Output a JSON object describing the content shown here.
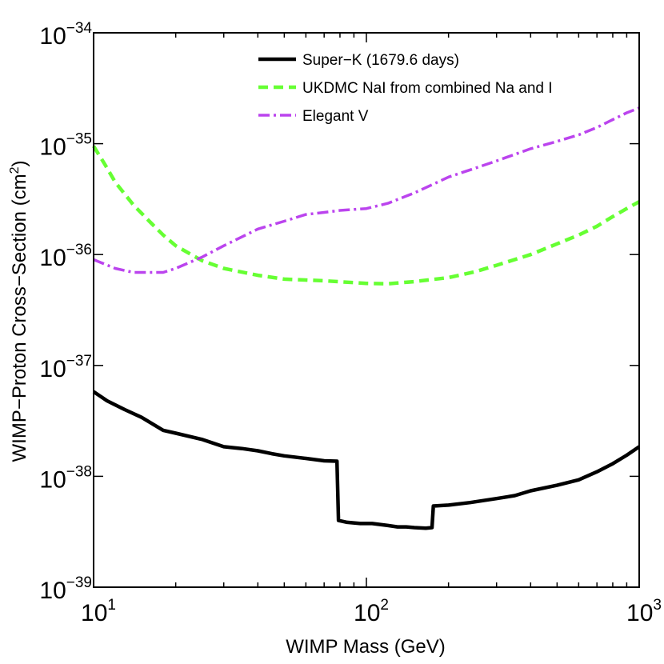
{
  "chart_data": {
    "type": "line",
    "title": "",
    "xlabel": "WIMP Mass (GeV)",
    "ylabel_main": "WIMP−Proton Cross−Section (cm",
    "ylabel_sup": "2",
    "ylabel_close": ")",
    "xscale": "log",
    "yscale": "log",
    "xlim": [
      10,
      1000
    ],
    "ylim": [
      1e-39,
      1e-34
    ],
    "x_ticks": [
      {
        "value": 10,
        "base": "10",
        "exp": "1"
      },
      {
        "value": 100,
        "base": "10",
        "exp": "2"
      },
      {
        "value": 1000,
        "base": "10",
        "exp": "3"
      }
    ],
    "y_ticks": [
      {
        "value": 1e-34,
        "base": "10",
        "exp": "−34"
      },
      {
        "value": 1e-35,
        "base": "10",
        "exp": "−35"
      },
      {
        "value": 1e-36,
        "base": "10",
        "exp": "−36"
      },
      {
        "value": 1e-37,
        "base": "10",
        "exp": "−37"
      },
      {
        "value": 1e-38,
        "base": "10",
        "exp": "−38"
      },
      {
        "value": 1e-39,
        "base": "10",
        "exp": "−39"
      }
    ],
    "grid": false,
    "legend_position": "top-right",
    "series": [
      {
        "name": "Super−K (1679.6 days)",
        "color": "#000000",
        "style": "solid",
        "points": [
          [
            10,
            5.8e-38
          ],
          [
            11.2,
            4.8e-38
          ],
          [
            13,
            4e-38
          ],
          [
            15,
            3.4e-38
          ],
          [
            18,
            2.6e-38
          ],
          [
            20,
            2.45e-38
          ],
          [
            25,
            2.15e-38
          ],
          [
            30,
            1.85e-38
          ],
          [
            35,
            1.78e-38
          ],
          [
            40,
            1.7e-38
          ],
          [
            45,
            1.6e-38
          ],
          [
            50,
            1.53e-38
          ],
          [
            60,
            1.45e-38
          ],
          [
            70,
            1.38e-38
          ],
          [
            78,
            1.37e-38
          ],
          [
            79,
            4e-39
          ],
          [
            85,
            3.85e-39
          ],
          [
            95,
            3.75e-39
          ],
          [
            105,
            3.75e-39
          ],
          [
            120,
            3.6e-39
          ],
          [
            130,
            3.5e-39
          ],
          [
            140,
            3.5e-39
          ],
          [
            150,
            3.45e-39
          ],
          [
            165,
            3.4e-39
          ],
          [
            174,
            3.45e-39
          ],
          [
            176,
            5.4e-39
          ],
          [
            200,
            5.5e-39
          ],
          [
            240,
            5.8e-39
          ],
          [
            300,
            6.3e-39
          ],
          [
            350,
            6.7e-39
          ],
          [
            400,
            7.4e-39
          ],
          [
            500,
            8.3e-39
          ],
          [
            600,
            9.3e-39
          ],
          [
            700,
            1.1e-38
          ],
          [
            800,
            1.3e-38
          ],
          [
            900,
            1.55e-38
          ],
          [
            1000,
            1.85e-38
          ]
        ]
      },
      {
        "name": "UKDMC NaI from combined Na and I",
        "color": "#66ff33",
        "style": "dashed",
        "points": [
          [
            10,
            9.5e-36
          ],
          [
            11,
            6.5e-36
          ],
          [
            12,
            4.5e-36
          ],
          [
            14,
            2.8e-36
          ],
          [
            16,
            2e-36
          ],
          [
            18,
            1.5e-36
          ],
          [
            20,
            1.2e-36
          ],
          [
            25,
            8.8e-37
          ],
          [
            30,
            7.5e-37
          ],
          [
            40,
            6.5e-37
          ],
          [
            50,
            6e-37
          ],
          [
            70,
            5.8e-37
          ],
          [
            100,
            5.5e-37
          ],
          [
            120,
            5.45e-37
          ],
          [
            150,
            5.7e-37
          ],
          [
            200,
            6.2e-37
          ],
          [
            250,
            7e-37
          ],
          [
            300,
            8e-37
          ],
          [
            400,
            1e-36
          ],
          [
            500,
            1.25e-36
          ],
          [
            600,
            1.5e-36
          ],
          [
            700,
            1.8e-36
          ],
          [
            800,
            2.2e-36
          ],
          [
            900,
            2.6e-36
          ],
          [
            1000,
            3e-36
          ]
        ]
      },
      {
        "name": "Elegant V",
        "color": "#bb44ee",
        "style": "dashdot",
        "points": [
          [
            10,
            9e-37
          ],
          [
            12,
            7.5e-37
          ],
          [
            14,
            6.9e-37
          ],
          [
            16,
            6.9e-37
          ],
          [
            18,
            6.9e-37
          ],
          [
            20,
            7.5e-37
          ],
          [
            25,
            9.5e-37
          ],
          [
            30,
            1.2e-36
          ],
          [
            40,
            1.7e-36
          ],
          [
            50,
            2e-36
          ],
          [
            60,
            2.3e-36
          ],
          [
            70,
            2.4e-36
          ],
          [
            80,
            2.5e-36
          ],
          [
            100,
            2.6e-36
          ],
          [
            120,
            2.9e-36
          ],
          [
            150,
            3.6e-36
          ],
          [
            200,
            5e-36
          ],
          [
            250,
            6e-36
          ],
          [
            300,
            7e-36
          ],
          [
            400,
            9e-36
          ],
          [
            500,
            1.05e-35
          ],
          [
            600,
            1.2e-35
          ],
          [
            700,
            1.4e-35
          ],
          [
            800,
            1.65e-35
          ],
          [
            900,
            1.9e-35
          ],
          [
            1000,
            2.1e-35
          ]
        ]
      }
    ]
  }
}
